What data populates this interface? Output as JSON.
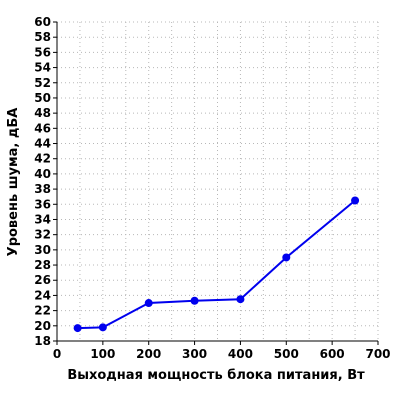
{
  "chart_data": {
    "type": "line",
    "title": "",
    "xlabel": "Выходная мощность блока питания, Вт",
    "ylabel": "Уровень шума, дБА",
    "xlim": [
      0,
      700
    ],
    "ylim": [
      18,
      60
    ],
    "x_ticks": [
      0,
      100,
      200,
      300,
      400,
      500,
      600,
      700
    ],
    "y_ticks": [
      18,
      20,
      22,
      24,
      26,
      28,
      30,
      32,
      34,
      36,
      38,
      40,
      42,
      44,
      46,
      48,
      50,
      52,
      54,
      56,
      58,
      60
    ],
    "grid": true,
    "legend": "none",
    "series": [
      {
        "color": "#0000ee",
        "x": [
          45,
          100,
          200,
          300,
          400,
          500,
          650
        ],
        "y": [
          19.7,
          19.8,
          23.0,
          23.3,
          23.5,
          29.0,
          36.5
        ]
      }
    ]
  }
}
